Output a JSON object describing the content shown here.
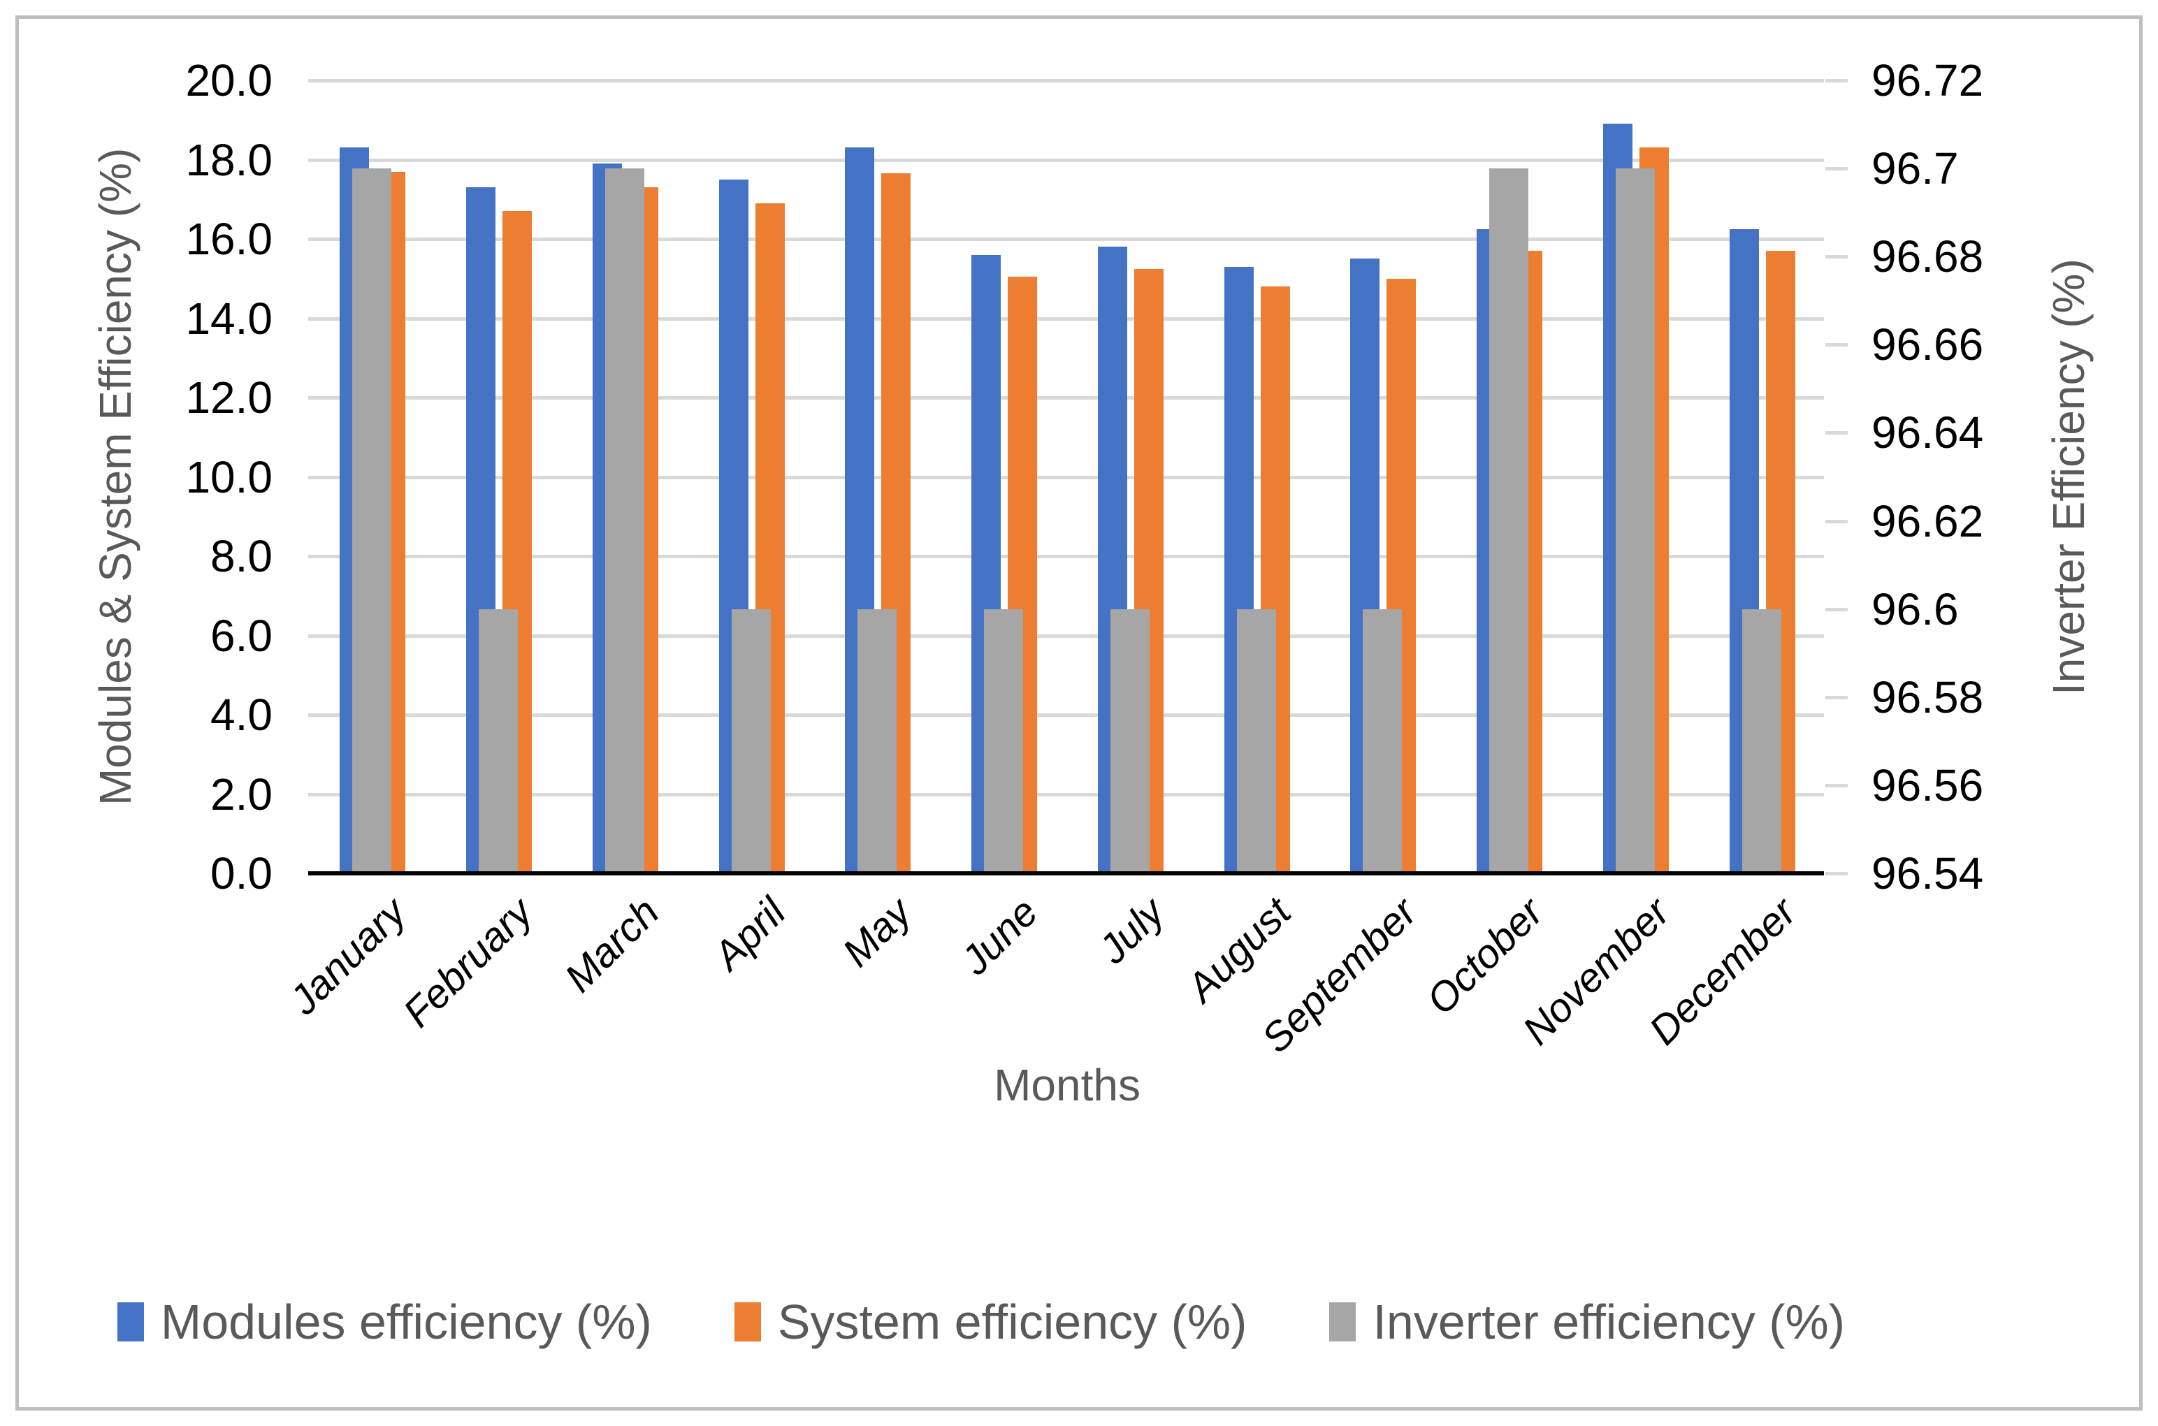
{
  "chart_data": {
    "type": "bar",
    "title": "",
    "categories": [
      "January",
      "February",
      "March",
      "April",
      "May",
      "June",
      "July",
      "August",
      "September",
      "October",
      "November",
      "December"
    ],
    "series": [
      {
        "name": "Modules efficiency (%)",
        "axis": "primary",
        "color": "#4472C4",
        "values": [
          18.3,
          17.3,
          17.9,
          17.5,
          18.3,
          15.6,
          15.8,
          15.3,
          15.5,
          16.25,
          18.9,
          16.25
        ]
      },
      {
        "name": "System efficiency (%)",
        "axis": "primary",
        "color": "#ED7D31",
        "values": [
          17.7,
          16.7,
          17.3,
          16.9,
          17.65,
          15.05,
          15.25,
          14.8,
          15.0,
          15.7,
          18.3,
          15.7
        ]
      },
      {
        "name": "Inverter efficiency (%)",
        "axis": "secondary",
        "color": "#A6A6A6",
        "values": [
          96.7,
          96.6,
          96.7,
          96.6,
          96.6,
          96.6,
          96.6,
          96.6,
          96.6,
          96.7,
          96.7,
          96.6
        ]
      }
    ],
    "xlabel": "Months",
    "ylabel_left": "Modules & System Efficiency (%)",
    "ylabel_right": "Inverter Efficiency (%)",
    "ylim_left": [
      0,
      20
    ],
    "ylim_right": [
      96.54,
      96.72
    ],
    "left_tick_labels": [
      "20.0",
      "18.0",
      "16.0",
      "14.0",
      "12.0",
      "10.0",
      "8.0",
      "6.0",
      "4.0",
      "2.0",
      "0.0"
    ],
    "right_tick_labels": [
      "96.72",
      "96.7",
      "96.68",
      "96.66",
      "96.64",
      "96.62",
      "96.6",
      "96.58",
      "96.56",
      "96.54"
    ],
    "grid": true,
    "legend_position": "bottom"
  },
  "colors": {
    "modules_bar": "#4472C4",
    "system_bar": "#ED7D31",
    "inverter_bar": "#A6A6A6",
    "gridline": "#D9D9D9",
    "axis_line": "#000000",
    "tick_text": "#000000",
    "title_text": "#595959",
    "month_text": "#000000",
    "frame_border": "#BFBFBF",
    "background": "#FFFFFF"
  }
}
